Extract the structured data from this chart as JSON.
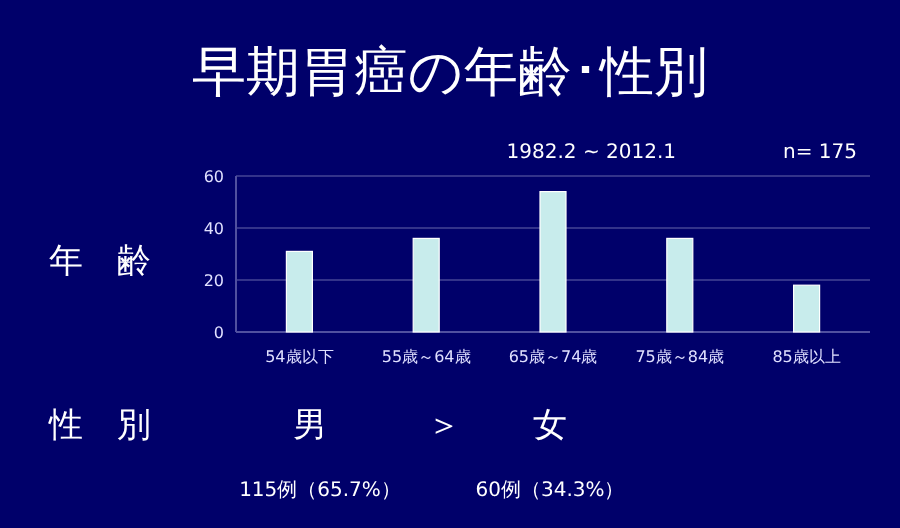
{
  "chart_data": {
    "type": "bar",
    "title": "早期胃癌の年齢･性別",
    "ylabel": "年　齢",
    "categories": [
      "54歳以下",
      "55歳～64歳",
      "65歳～74歳",
      "75歳～84歳",
      "85歳以上"
    ],
    "values": [
      31,
      36,
      54,
      36,
      18
    ],
    "color": "#c8ecec",
    "ylim": [
      0,
      60
    ],
    "yticks": [
      0,
      20,
      40,
      60
    ],
    "grid": "y",
    "annotations": [
      "1982.2 ~ 2012.1",
      "n= 175",
      "性　別",
      "男",
      "＞",
      "女",
      "115例（65.7%）",
      "60例（34.3%）"
    ]
  }
}
